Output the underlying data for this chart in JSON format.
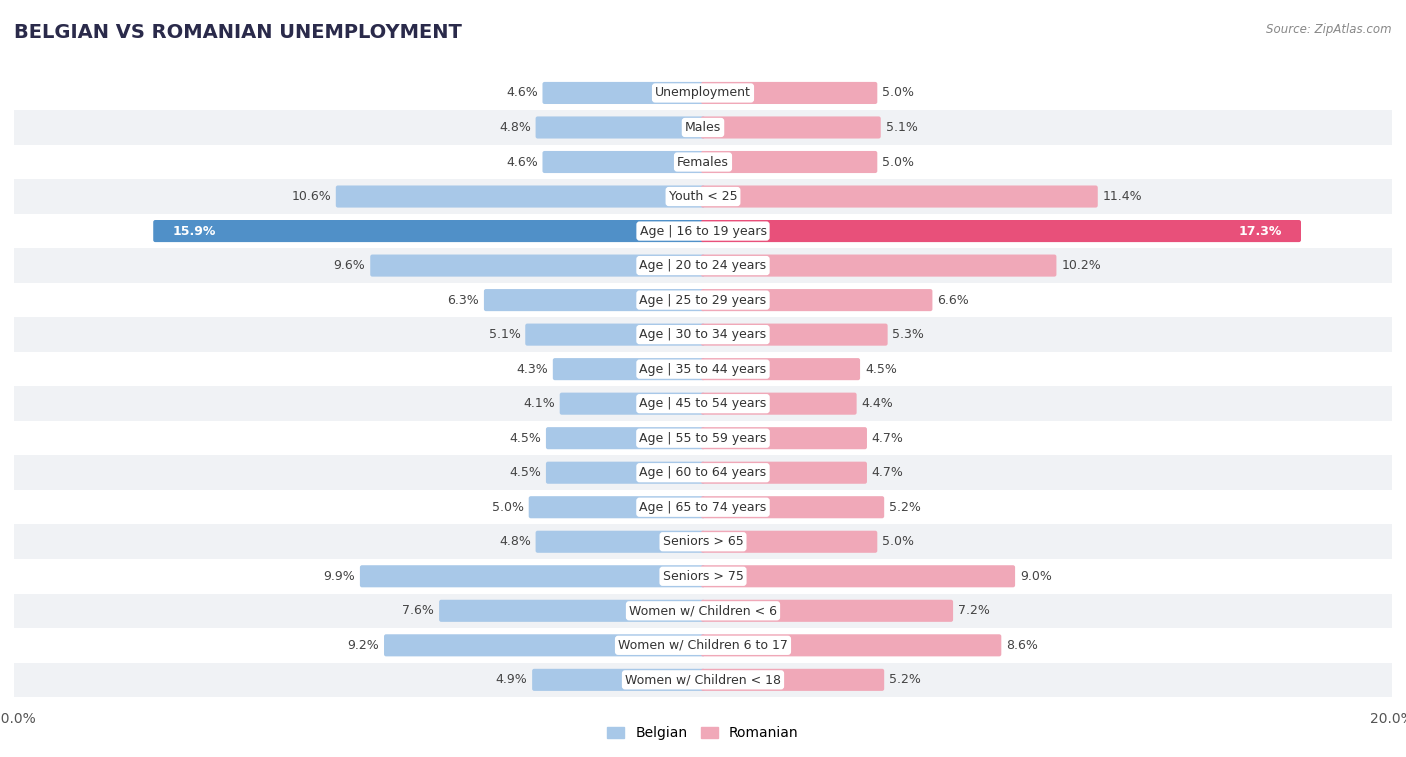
{
  "title": "BELGIAN VS ROMANIAN UNEMPLOYMENT",
  "source": "Source: ZipAtlas.com",
  "categories": [
    "Unemployment",
    "Males",
    "Females",
    "Youth < 25",
    "Age | 16 to 19 years",
    "Age | 20 to 24 years",
    "Age | 25 to 29 years",
    "Age | 30 to 34 years",
    "Age | 35 to 44 years",
    "Age | 45 to 54 years",
    "Age | 55 to 59 years",
    "Age | 60 to 64 years",
    "Age | 65 to 74 years",
    "Seniors > 65",
    "Seniors > 75",
    "Women w/ Children < 6",
    "Women w/ Children 6 to 17",
    "Women w/ Children < 18"
  ],
  "belgian": [
    4.6,
    4.8,
    4.6,
    10.6,
    15.9,
    9.6,
    6.3,
    5.1,
    4.3,
    4.1,
    4.5,
    4.5,
    5.0,
    4.8,
    9.9,
    7.6,
    9.2,
    4.9
  ],
  "romanian": [
    5.0,
    5.1,
    5.0,
    11.4,
    17.3,
    10.2,
    6.6,
    5.3,
    4.5,
    4.4,
    4.7,
    4.7,
    5.2,
    5.0,
    9.0,
    7.2,
    8.6,
    5.2
  ],
  "belgian_color": "#a8c8e8",
  "romanian_color": "#f0a8b8",
  "highlight_belgian_color": "#5090c8",
  "highlight_romanian_color": "#e8507a",
  "bg_color": "#ffffff",
  "row_color_odd": "#f0f2f5",
  "row_color_even": "#ffffff",
  "max_val": 20.0,
  "bar_height": 0.52,
  "label_fontsize": 9.0,
  "category_fontsize": 9.0,
  "title_fontsize": 14,
  "legend_fontsize": 10,
  "highlight_row": "Age | 16 to 19 years"
}
